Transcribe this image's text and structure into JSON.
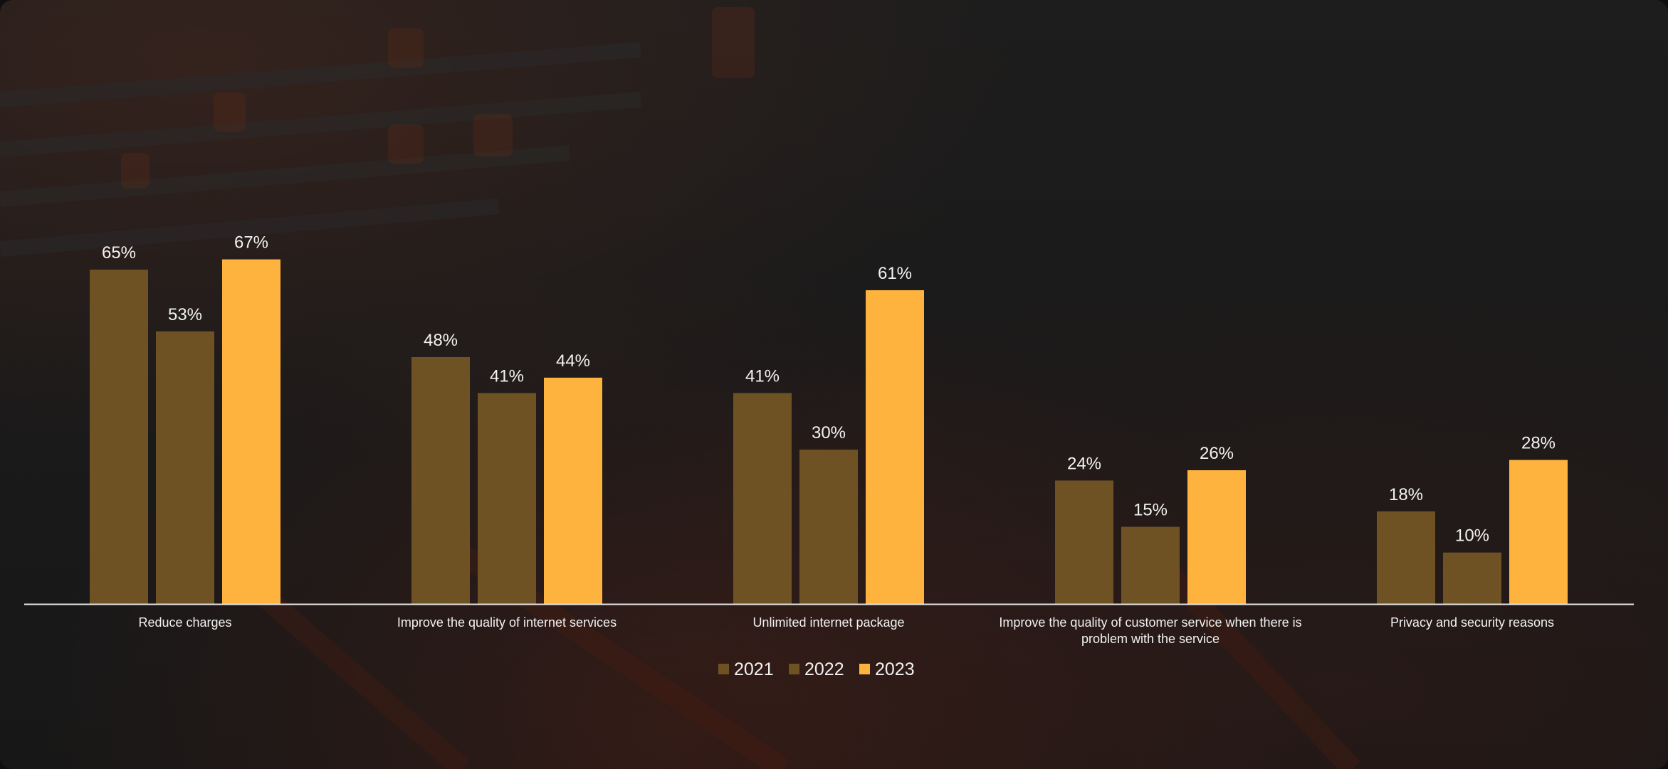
{
  "chart_data": {
    "type": "bar",
    "categories": [
      "Reduce charges",
      "Improve the quality of internet services",
      "Unlimited internet package",
      "Improve the quality of customer service when there is problem with the service",
      "Privacy and security reasons"
    ],
    "category_lines": [
      [
        "Reduce charges"
      ],
      [
        "Improve the quality of internet services"
      ],
      [
        "Unlimited internet package"
      ],
      [
        "Improve the quality of customer service when there is",
        "problem with the service"
      ],
      [
        "Privacy and security reasons"
      ]
    ],
    "series": [
      {
        "name": "2021",
        "values": [
          65,
          48,
          41,
          24,
          18
        ],
        "labels": [
          "65%",
          "48%",
          "41%",
          "24%",
          "18%"
        ],
        "color": "#6f5223"
      },
      {
        "name": "2022",
        "values": [
          53,
          41,
          30,
          15,
          10
        ],
        "labels": [
          "53%",
          "41%",
          "30%",
          "15%",
          "10%"
        ],
        "color": "#6f5223"
      },
      {
        "name": "2023",
        "values": [
          67,
          44,
          61,
          26,
          28
        ],
        "labels": [
          "67%",
          "44%",
          "61%",
          "26%",
          "28%"
        ],
        "color": "#ffb33f"
      }
    ],
    "value_format": "%",
    "ylim": [
      0,
      70
    ],
    "grid": false,
    "legend": "bottom-center",
    "title": "",
    "xlabel": "",
    "ylabel": ""
  }
}
